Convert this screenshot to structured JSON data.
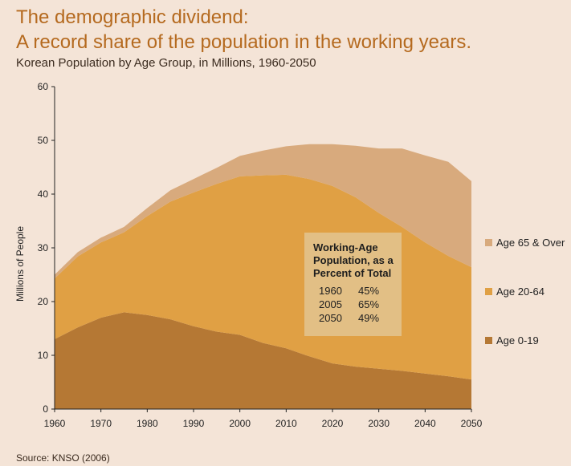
{
  "title_line1": "The demographic dividend:",
  "title_line2": "A record share of the population in the working years.",
  "subtitle": "Korean Population by Age Group, in Millions, 1960-2050",
  "source": "Source: KNSO (2006)",
  "colors": {
    "background": "#f4e4d7",
    "title": "#b56a1f",
    "age_0_19": "#b57834",
    "age_20_64": "#e0a044",
    "age_65_over": "#d8aa7d",
    "box_fill": "#e2bf85"
  },
  "chart_data": {
    "type": "area",
    "stacked": true,
    "x": [
      1960,
      1965,
      1970,
      1975,
      1980,
      1985,
      1990,
      1995,
      2000,
      2005,
      2010,
      2015,
      2020,
      2025,
      2030,
      2035,
      2040,
      2045,
      2050
    ],
    "series": [
      {
        "name": "Age 0-19",
        "values": [
          13.0,
          15.2,
          17.0,
          18.0,
          17.5,
          16.7,
          15.4,
          14.4,
          13.8,
          12.3,
          11.3,
          9.8,
          8.5,
          7.9,
          7.5,
          7.1,
          6.6,
          6.1,
          5.5
        ]
      },
      {
        "name": "Age 20-64",
        "values": [
          11.3,
          13.2,
          14.0,
          14.9,
          18.4,
          21.9,
          24.9,
          27.5,
          29.5,
          31.2,
          32.3,
          33.0,
          33.0,
          31.5,
          29.0,
          26.8,
          24.4,
          22.4,
          20.9
        ]
      },
      {
        "name": "Age 65 & Over",
        "values": [
          0.7,
          0.8,
          0.9,
          1.0,
          1.5,
          2.1,
          2.5,
          3.0,
          3.8,
          4.6,
          5.3,
          6.5,
          7.8,
          9.6,
          12.0,
          14.6,
          16.2,
          17.5,
          16.0
        ]
      }
    ],
    "legend_order": [
      "Age 65 & Over",
      "Age 20-64",
      "Age 0-19"
    ],
    "legend_position": "right",
    "ylabel": "Millions of People",
    "xlabel": "",
    "xlim": [
      1960,
      2050
    ],
    "ylim": [
      0,
      60
    ],
    "xticks": [
      1960,
      1970,
      1980,
      1990,
      2000,
      2010,
      2020,
      2030,
      2040,
      2050
    ],
    "yticks": [
      0,
      10,
      20,
      30,
      40,
      50,
      60
    ],
    "grid": false,
    "annotation": {
      "heading": [
        "Working-Age",
        "Population, as a",
        "Percent of Total"
      ],
      "rows": [
        {
          "year": "1960",
          "percent": "45%"
        },
        {
          "year": "2005",
          "percent": "65%"
        },
        {
          "year": "2050",
          "percent": "49%"
        }
      ]
    }
  }
}
